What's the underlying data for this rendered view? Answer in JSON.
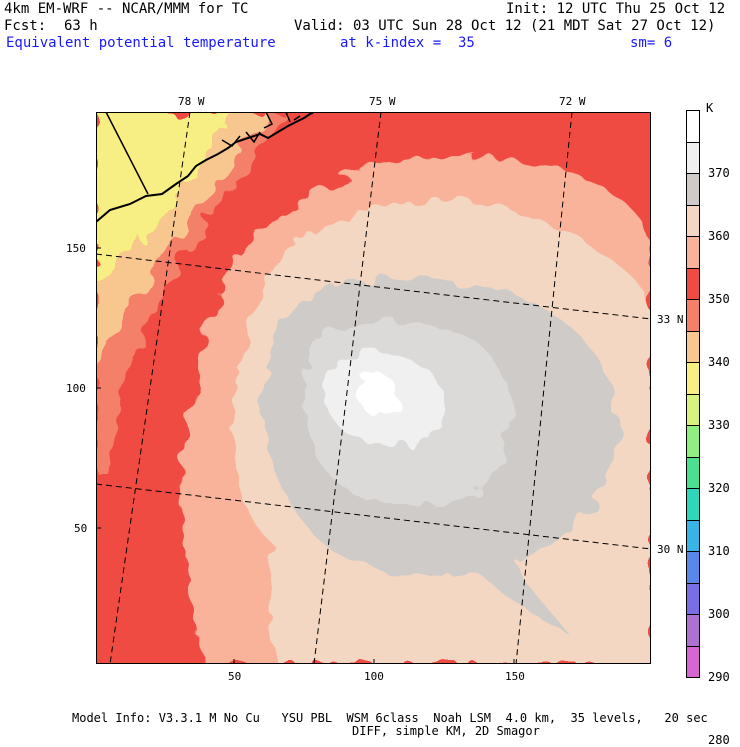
{
  "header": {
    "model": "4km EM-WRF -- NCAR/MMM for TC",
    "init": "Init: 12 UTC Thu 25 Oct 12",
    "fcst_label": "Fcst:",
    "fcst_value": "63 h",
    "valid": "Valid: 03 UTC Sun 28 Oct 12 (21 MDT Sat 27 Oct 12)",
    "field": "Equivalent potential temperature",
    "level": "at k-index =  35",
    "smoothing": "sm= 6"
  },
  "map": {
    "x_ticks": [
      "50",
      "100",
      "150"
    ],
    "y_ticks": [
      "150",
      "100",
      "50"
    ],
    "lon_labels": [
      "78 W",
      "75 W",
      "72 W"
    ],
    "lat_labels": [
      "33 N",
      "30 N"
    ]
  },
  "colorbar": {
    "unit": "K",
    "labels": [
      "370",
      "360",
      "350",
      "340",
      "330",
      "320",
      "310",
      "300",
      "290",
      "280"
    ],
    "colors": [
      "#ffffff",
      "#f0f0f0",
      "#cfcbc8",
      "#f3d7c2",
      "#f9b39a",
      "#ef4b43",
      "#f5806a",
      "#f8c78f",
      "#f7ee84",
      "#d7f27e",
      "#8ff081",
      "#4ddf90",
      "#2fd7b8",
      "#39b2e6",
      "#5a88ea",
      "#7a6ee4",
      "#ad72cf",
      "#d567d0"
    ]
  },
  "footer": {
    "line1": "Model Info: V3.3.1 M No Cu   YSU PBL  WSM 6class  Noah LSM  4.0 km,  35 levels,   20 sec",
    "line2": "DIFF, simple KM, 2D Smagor"
  }
}
